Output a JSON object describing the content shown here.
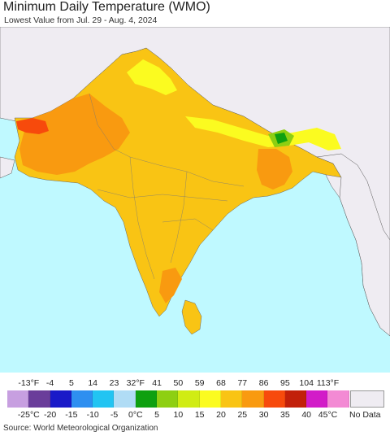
{
  "title": "Minimum Daily Temperature (WMO)",
  "subtitle": "Lowest Value from Jul. 29 - Aug. 4, 2024",
  "source": "Source: World Meteorological Organization",
  "legend": {
    "fahrenheit": [
      "-13°F",
      "-4",
      "5",
      "14",
      "23",
      "32°F",
      "41",
      "50",
      "59",
      "68",
      "77",
      "86",
      "95",
      "104",
      "113°F"
    ],
    "celsius": [
      "-25°C",
      "-20",
      "-15",
      "-10",
      "-5",
      "0°C",
      "5",
      "10",
      "15",
      "20",
      "25",
      "30",
      "35",
      "40",
      "45°C"
    ],
    "colors": [
      "#c79fe0",
      "#6a3d9a",
      "#1a1ac8",
      "#2e8ff0",
      "#22c4f2",
      "#b0dcf5",
      "#0ea010",
      "#8ecf12",
      "#d0ec14",
      "#fbfb20",
      "#f9c414",
      "#f99a10",
      "#f74a0c",
      "#c2200a",
      "#d21cc8",
      "#f38ad4"
    ],
    "no_data_label": "No Data",
    "no_data_color": "#efecf2"
  },
  "map_colors": {
    "ocean": "#bff9ff",
    "no_data_land": "#efecf2",
    "temp_20_25": "#f9c414",
    "temp_25_30": "#f99a10",
    "temp_30_35": "#f74a0c",
    "temp_15_20": "#fbfb20",
    "temp_10_15": "#d0ec14",
    "temp_5_10": "#8ecf12",
    "temp_0_5": "#0ea010"
  }
}
